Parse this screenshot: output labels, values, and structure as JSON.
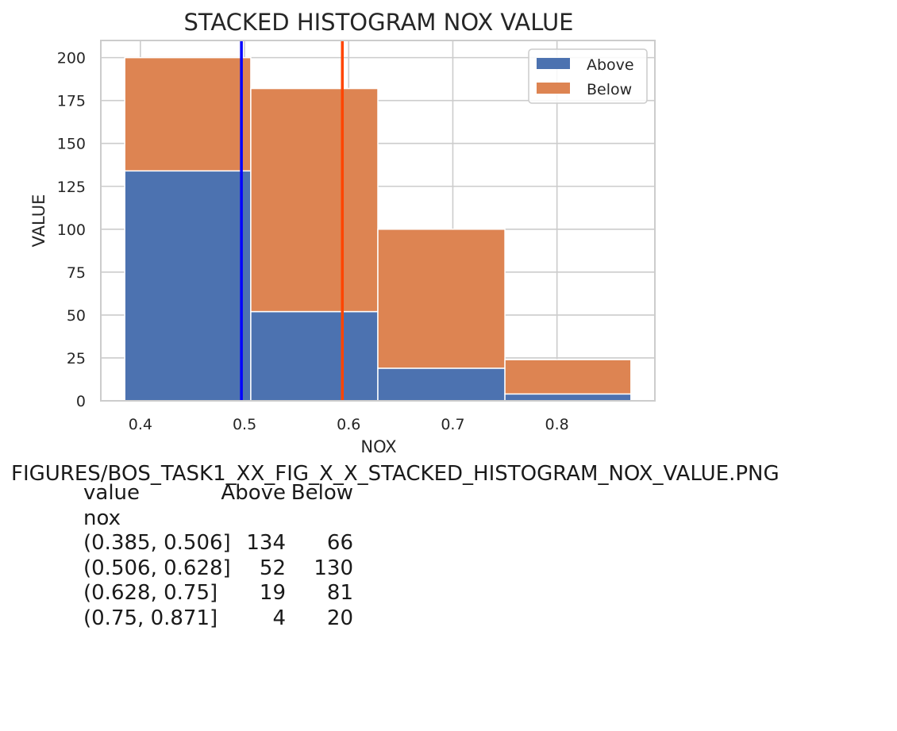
{
  "chart_data": {
    "type": "bar",
    "stacked": true,
    "title": "STACKED HISTOGRAM NOX VALUE",
    "xlabel": "NOX",
    "ylabel": "VALUE",
    "bins": [
      {
        "start": 0.385,
        "end": 0.506
      },
      {
        "start": 0.506,
        "end": 0.628
      },
      {
        "start": 0.628,
        "end": 0.75
      },
      {
        "start": 0.75,
        "end": 0.871
      }
    ],
    "series": [
      {
        "name": "Above",
        "values": [
          134,
          52,
          19,
          4
        ],
        "color": "#4c72b0"
      },
      {
        "name": "Below",
        "values": [
          66,
          130,
          81,
          20
        ],
        "color": "#dd8452"
      }
    ],
    "xlim": [
      0.362,
      0.894
    ],
    "ylim": [
      0,
      210
    ],
    "xticks": [
      0.4,
      0.5,
      0.6,
      0.7,
      0.8
    ],
    "xtick_labels": [
      "0.4",
      "0.5",
      "0.6",
      "0.7",
      "0.8"
    ],
    "yticks": [
      0,
      25,
      50,
      75,
      100,
      125,
      150,
      175,
      200
    ],
    "ytick_labels": [
      "0",
      "25",
      "50",
      "75",
      "100",
      "125",
      "150",
      "175",
      "200"
    ],
    "vlines": [
      {
        "x": 0.497,
        "color": "#0000ff"
      },
      {
        "x": 0.5939,
        "color": "#ff4500"
      }
    ],
    "grid": true,
    "legend_position": "top-right"
  },
  "caption": "FIGURES/BOS_TASK1_XX_FIG_X_X_STACKED_HISTOGRAM_NOX_VALUE.PNG",
  "summary_table": {
    "header": [
      "value",
      "Above",
      "Below"
    ],
    "index_name": "nox",
    "rows": [
      [
        "(0.385, 0.506]",
        "134",
        "66"
      ],
      [
        "(0.506, 0.628]",
        "52",
        "130"
      ],
      [
        "(0.628, 0.75]",
        "19",
        "81"
      ],
      [
        "(0.75, 0.871]",
        "4",
        "20"
      ]
    ]
  }
}
